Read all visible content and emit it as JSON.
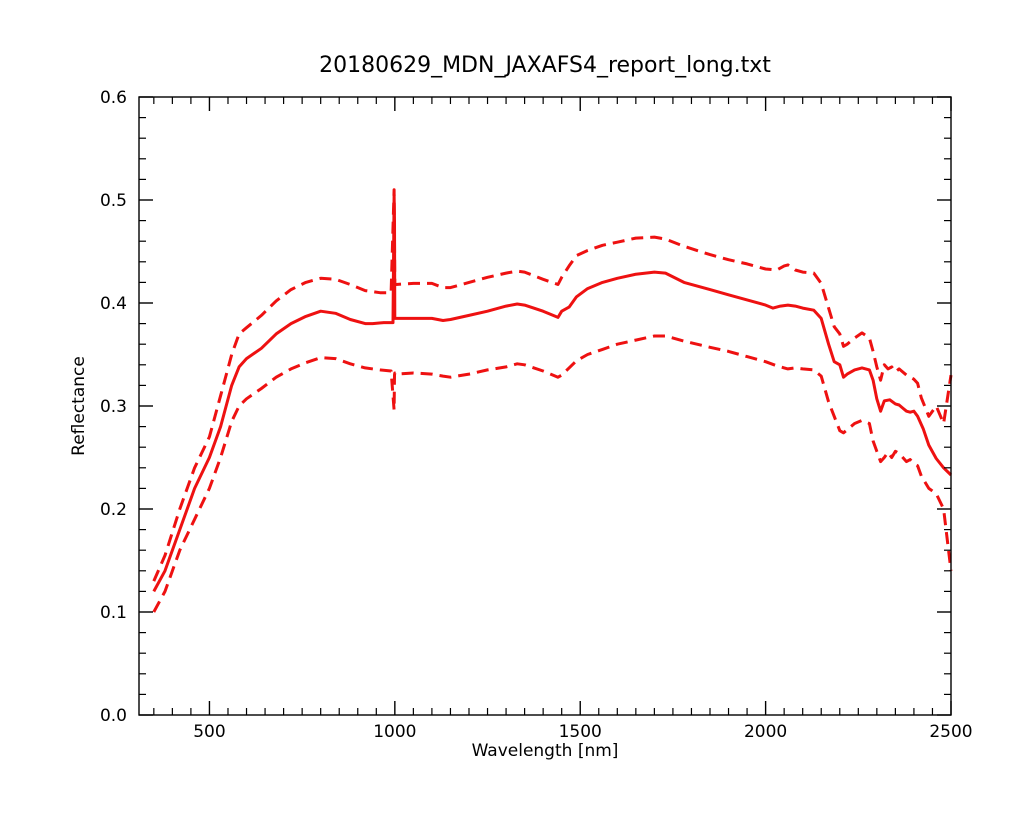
{
  "chart_data": {
    "type": "line",
    "title": "20180629_MDN_JAXAFS4_report_long.txt",
    "xlabel": "Wavelength [nm]",
    "ylabel": "Reflectance",
    "xlim": [
      310,
      2500
    ],
    "ylim": [
      0.0,
      0.6
    ],
    "x_ticks": [
      500,
      1000,
      1500,
      2000,
      2500
    ],
    "x_tick_labels": [
      "500",
      "1000",
      "1500",
      "2000",
      "2500"
    ],
    "y_ticks": [
      0.0,
      0.1,
      0.2,
      0.3,
      0.4,
      0.5,
      0.6
    ],
    "y_tick_labels": [
      "0.0",
      "0.1",
      "0.2",
      "0.3",
      "0.4",
      "0.5",
      "0.6"
    ],
    "x_minor_step": 50,
    "y_minor_step": 0.02,
    "grid": false,
    "legend": "none",
    "color": "#ee1111",
    "series": [
      {
        "style": "solid",
        "x": [
          350,
          380,
          420,
          460,
          500,
          530,
          560,
          580,
          600,
          640,
          680,
          720,
          760,
          800,
          840,
          880,
          920,
          940,
          970,
          995,
          998,
          999,
          1000,
          1001,
          1003,
          1050,
          1100,
          1130,
          1150,
          1200,
          1250,
          1300,
          1330,
          1350,
          1400,
          1440,
          1450,
          1470,
          1490,
          1520,
          1560,
          1600,
          1650,
          1700,
          1730,
          1780,
          1850,
          1900,
          1950,
          2000,
          2020,
          2040,
          2060,
          2080,
          2100,
          2130,
          2150,
          2170,
          2185,
          2200,
          2210,
          2220,
          2240,
          2260,
          2280,
          2290,
          2300,
          2310,
          2320,
          2335,
          2350,
          2360,
          2370,
          2380,
          2390,
          2400,
          2410,
          2425,
          2440,
          2460,
          2480,
          2500
        ],
        "y": [
          0.12,
          0.14,
          0.18,
          0.22,
          0.25,
          0.28,
          0.32,
          0.338,
          0.346,
          0.356,
          0.37,
          0.38,
          0.387,
          0.392,
          0.39,
          0.384,
          0.38,
          0.38,
          0.381,
          0.381,
          0.505,
          0.48,
          0.385,
          0.385,
          0.385,
          0.385,
          0.385,
          0.383,
          0.384,
          0.388,
          0.392,
          0.397,
          0.399,
          0.398,
          0.392,
          0.386,
          0.392,
          0.396,
          0.406,
          0.414,
          0.42,
          0.424,
          0.428,
          0.43,
          0.429,
          0.42,
          0.413,
          0.408,
          0.403,
          0.398,
          0.395,
          0.397,
          0.398,
          0.397,
          0.395,
          0.393,
          0.385,
          0.36,
          0.343,
          0.34,
          0.328,
          0.331,
          0.335,
          0.337,
          0.335,
          0.325,
          0.307,
          0.295,
          0.305,
          0.306,
          0.302,
          0.301,
          0.298,
          0.295,
          0.294,
          0.295,
          0.29,
          0.278,
          0.262,
          0.249,
          0.24,
          0.233
        ]
      },
      {
        "style": "dashed",
        "x": [
          350,
          380,
          420,
          460,
          500,
          530,
          560,
          580,
          600,
          640,
          680,
          720,
          760,
          800,
          840,
          880,
          920,
          960,
          990,
          998,
          999,
          1000,
          1003,
          1050,
          1100,
          1130,
          1150,
          1200,
          1250,
          1300,
          1330,
          1350,
          1400,
          1440,
          1450,
          1470,
          1490,
          1520,
          1560,
          1600,
          1650,
          1700,
          1730,
          1780,
          1850,
          1900,
          1950,
          2000,
          2030,
          2050,
          2060,
          2080,
          2100,
          2130,
          2150,
          2170,
          2185,
          2200,
          2210,
          2220,
          2240,
          2260,
          2280,
          2290,
          2300,
          2310,
          2320,
          2330,
          2340,
          2350,
          2360,
          2370,
          2380,
          2390,
          2400,
          2410,
          2420,
          2440,
          2460,
          2480,
          2500
        ],
        "y": [
          0.13,
          0.155,
          0.2,
          0.24,
          0.27,
          0.31,
          0.35,
          0.37,
          0.376,
          0.388,
          0.402,
          0.413,
          0.42,
          0.424,
          0.423,
          0.418,
          0.412,
          0.41,
          0.41,
          0.51,
          0.46,
          0.418,
          0.418,
          0.419,
          0.419,
          0.415,
          0.415,
          0.42,
          0.425,
          0.429,
          0.431,
          0.43,
          0.423,
          0.418,
          0.425,
          0.436,
          0.446,
          0.451,
          0.456,
          0.459,
          0.463,
          0.464,
          0.462,
          0.455,
          0.447,
          0.442,
          0.438,
          0.433,
          0.432,
          0.436,
          0.437,
          0.432,
          0.43,
          0.429,
          0.419,
          0.395,
          0.377,
          0.37,
          0.358,
          0.36,
          0.366,
          0.371,
          0.366,
          0.353,
          0.338,
          0.325,
          0.34,
          0.336,
          0.338,
          0.333,
          0.336,
          0.333,
          0.33,
          0.328,
          0.326,
          0.322,
          0.308,
          0.29,
          0.3,
          0.283,
          0.33
        ]
      },
      {
        "style": "dashed",
        "x": [
          350,
          380,
          420,
          460,
          500,
          530,
          560,
          580,
          600,
          640,
          680,
          720,
          760,
          800,
          840,
          880,
          920,
          960,
          990,
          998,
          999,
          1000,
          1003,
          1050,
          1100,
          1130,
          1150,
          1200,
          1250,
          1300,
          1330,
          1350,
          1400,
          1440,
          1450,
          1470,
          1490,
          1520,
          1560,
          1600,
          1650,
          1700,
          1730,
          1780,
          1850,
          1900,
          1950,
          2000,
          2030,
          2050,
          2060,
          2080,
          2100,
          2130,
          2150,
          2170,
          2185,
          2200,
          2210,
          2220,
          2240,
          2260,
          2280,
          2290,
          2300,
          2310,
          2320,
          2330,
          2340,
          2350,
          2360,
          2370,
          2380,
          2390,
          2400,
          2410,
          2420,
          2440,
          2460,
          2480,
          2500
        ],
        "y": [
          0.1,
          0.12,
          0.16,
          0.19,
          0.22,
          0.25,
          0.285,
          0.3,
          0.307,
          0.317,
          0.328,
          0.336,
          0.342,
          0.347,
          0.346,
          0.341,
          0.337,
          0.335,
          0.334,
          0.296,
          0.33,
          0.332,
          0.331,
          0.332,
          0.331,
          0.329,
          0.328,
          0.331,
          0.335,
          0.338,
          0.341,
          0.34,
          0.334,
          0.328,
          0.33,
          0.337,
          0.344,
          0.35,
          0.355,
          0.36,
          0.364,
          0.368,
          0.368,
          0.363,
          0.357,
          0.353,
          0.348,
          0.343,
          0.339,
          0.337,
          0.336,
          0.337,
          0.336,
          0.335,
          0.329,
          0.304,
          0.29,
          0.276,
          0.274,
          0.277,
          0.283,
          0.286,
          0.283,
          0.266,
          0.256,
          0.246,
          0.25,
          0.255,
          0.25,
          0.256,
          0.254,
          0.25,
          0.246,
          0.248,
          0.244,
          0.242,
          0.232,
          0.22,
          0.215,
          0.2,
          0.14
        ]
      }
    ]
  }
}
